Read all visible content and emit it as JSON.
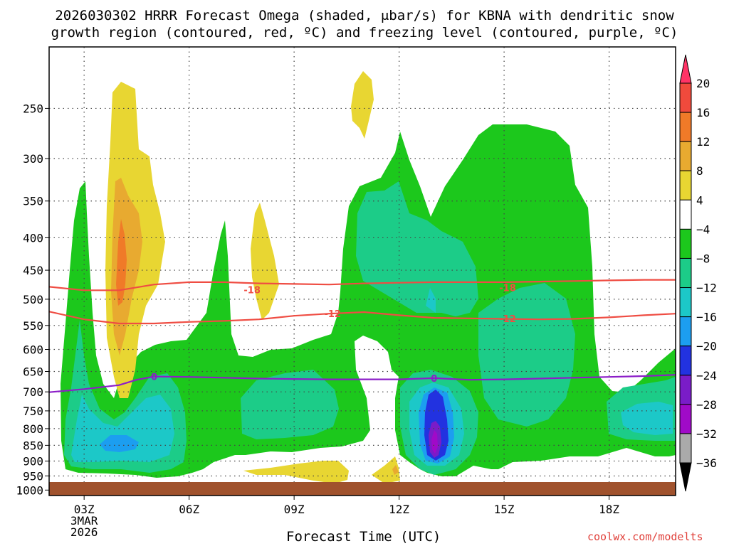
{
  "title_line1": "2026030302 HRRR Forecast Omega (shaded, μbar/s) for KBNA with dendritic snow",
  "title_line2": "growth region (contoured, red, ºC) and freezing level (contoured, purple, ºC)",
  "credit": "coolwx.com/modelts",
  "chart_data": {
    "type": "heatmap",
    "title": "2026030302 HRRR Forecast Omega (shaded, μbar/s) for KBNA with dendritic snow growth region (contoured, red, ºC) and freezing level (contoured, purple, ºC)",
    "xlabel": "Forecast Time (UTC)",
    "ylabel": "",
    "x_ticks": [
      "03Z",
      "06Z",
      "09Z",
      "12Z",
      "15Z",
      "18Z"
    ],
    "x_tick_hours": [
      3,
      6,
      9,
      12,
      15,
      18
    ],
    "x_date_label": [
      "3MAR",
      "2026"
    ],
    "xlim_hours": [
      2.0,
      19.9
    ],
    "y_ticks": [
      250,
      300,
      350,
      400,
      450,
      500,
      550,
      600,
      650,
      700,
      750,
      800,
      850,
      900,
      950,
      1000
    ],
    "y_scale": "log-pressure, inverted",
    "ylim_hPa": [
      1020,
      200
    ],
    "colorbar": {
      "labels": [
        "20",
        "16",
        "12",
        "8",
        "4",
        "−4",
        "−8",
        "−12",
        "−16",
        "−20",
        "−24",
        "−28",
        "−32",
        "−36"
      ],
      "colors": [
        "#ff3366",
        "#f04a3c",
        "#f07a28",
        "#e8aa30",
        "#e8d632",
        "#ffffff",
        "#1cc81c",
        "#1ccc88",
        "#1cc8c8",
        "#1c9ef0",
        "#2232e0",
        "#7a1cc8",
        "#a00ac8",
        "#aaaaaa",
        "#000000"
      ],
      "levels": [
        20,
        16,
        12,
        8,
        4,
        -4,
        -8,
        -12,
        -16,
        -20,
        -24,
        -28,
        -32,
        -36
      ]
    },
    "contour_labels": {
      "dgz": [
        {
          "value": "-18",
          "hour": 7.8,
          "p": 483
        },
        {
          "value": "-12",
          "hour": 10.1,
          "p": 527
        },
        {
          "value": "-18",
          "hour": 15.1,
          "p": 479
        },
        {
          "value": "-12",
          "hour": 15.1,
          "p": 536
        }
      ],
      "freezing": [
        {
          "value": "0",
          "hour": 5.0,
          "p": 662
        },
        {
          "value": "0",
          "hour": 13.0,
          "p": 666
        }
      ]
    },
    "series": [
      {
        "name": "-18",
        "color": "#ef4d43",
        "x": [
          2.0,
          3.0,
          4.0,
          5.0,
          6.0,
          7.0,
          8.0,
          9.0,
          10.0,
          11.0,
          12.0,
          13.0,
          14.0,
          15.0,
          16.0,
          17.0,
          18.0,
          19.0,
          19.9
        ],
        "y": [
          478,
          484,
          484,
          474,
          470,
          470,
          472,
          473,
          474,
          472,
          471,
          470,
          470,
          470,
          469,
          468,
          467,
          466,
          466
        ]
      },
      {
        "name": "-12",
        "color": "#ef4d43",
        "x": [
          2.0,
          3.0,
          4.0,
          5.0,
          6.0,
          7.0,
          8.0,
          9.0,
          10.0,
          11.0,
          12.0,
          13.0,
          14.0,
          15.0,
          16.0,
          17.0,
          18.0,
          19.0,
          19.9
        ],
        "y": [
          523,
          538,
          546,
          546,
          543,
          541,
          538,
          531,
          527,
          524,
          530,
          535,
          536,
          537,
          538,
          537,
          534,
          530,
          527
        ]
      },
      {
        "name": "0",
        "color": "#8c1ec8",
        "x": [
          2.0,
          3.0,
          4.0,
          4.5,
          5.0,
          6.0,
          7.0,
          8.0,
          9.0,
          10.0,
          11.0,
          12.0,
          13.0,
          14.0,
          15.0,
          16.0,
          17.0,
          18.0,
          19.0,
          19.9
        ],
        "y": [
          701,
          693,
          683,
          670,
          662,
          663,
          665,
          667,
          668,
          669,
          669,
          669,
          666,
          670,
          669,
          667,
          665,
          663,
          661,
          658
        ]
      }
    ]
  }
}
